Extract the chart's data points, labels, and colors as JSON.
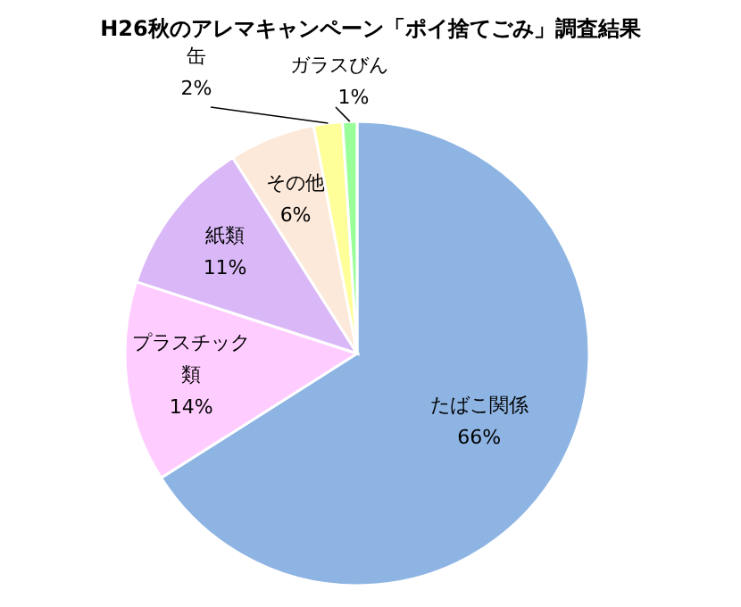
{
  "chart_data": {
    "type": "pie",
    "title": "H26秋のアレマキャンペーン「ポイ捨てごみ」調査結果",
    "categories": [
      "たばこ関係",
      "プラスチック類",
      "紙類",
      "その他",
      "缶",
      "ガラスびん"
    ],
    "values": [
      66,
      14,
      11,
      6,
      2,
      1
    ],
    "colors": [
      "#8eb4e3",
      "#ffccff",
      "#dab8f8",
      "#fde9d9",
      "#ffff99",
      "#99ff99"
    ],
    "value_labels": [
      "66%",
      "14%",
      "11%",
      "6%",
      "2%",
      "1%"
    ]
  }
}
